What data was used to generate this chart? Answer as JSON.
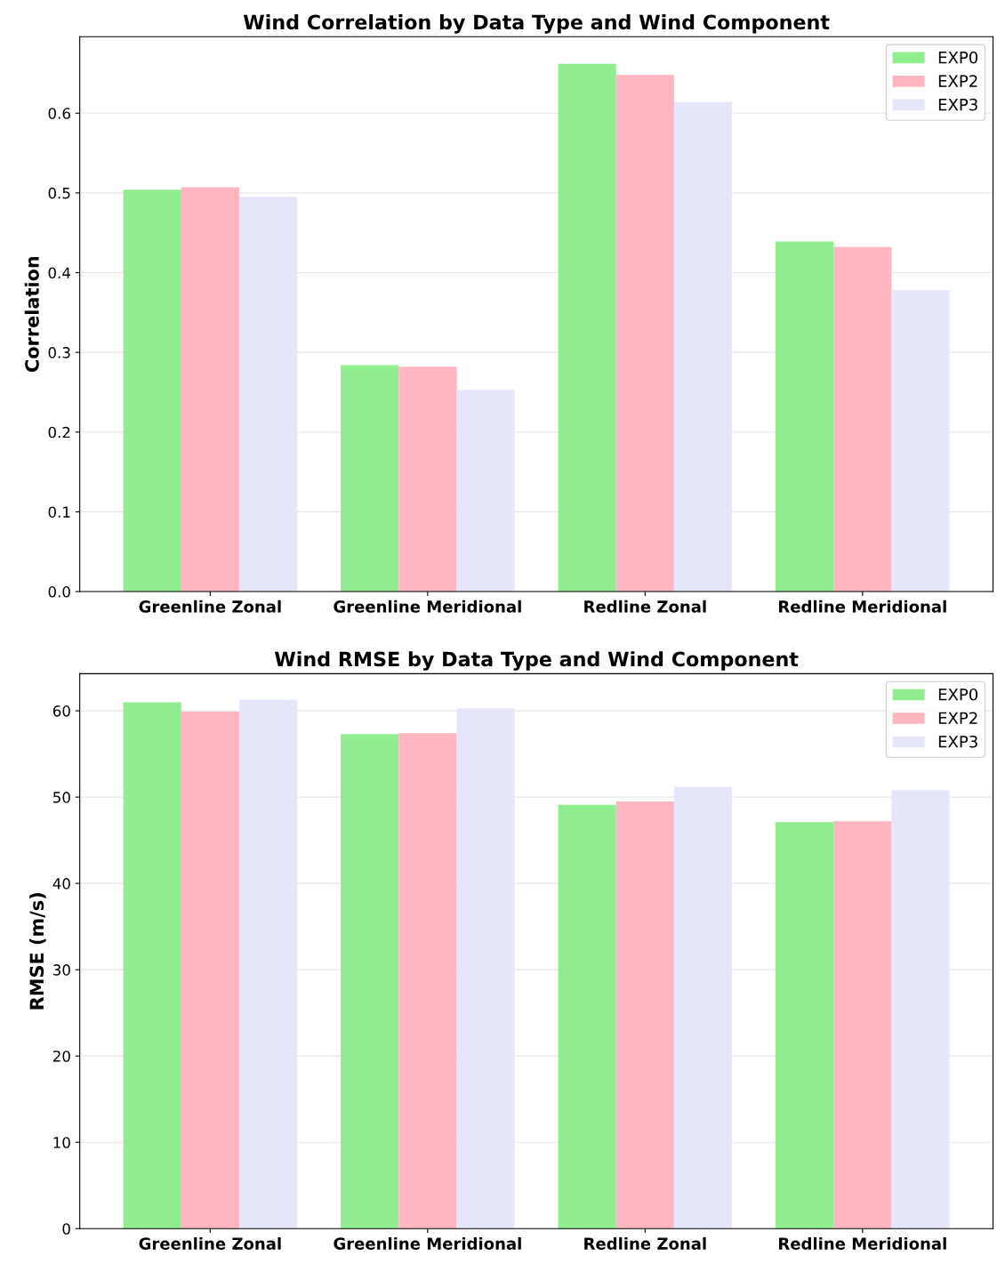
{
  "chart_data": [
    {
      "type": "bar",
      "title": "Wind Correlation by Data Type and Wind Component",
      "ylabel": "Correlation",
      "categories": [
        "Greenline Zonal",
        "Greenline Meridional",
        "Redline Zonal",
        "Redline Meridional"
      ],
      "series": [
        {
          "name": "EXP0",
          "color": "#90ee90",
          "values": [
            0.504,
            0.284,
            0.662,
            0.439
          ]
        },
        {
          "name": "EXP2",
          "color": "#ffb6c1",
          "values": [
            0.507,
            0.282,
            0.648,
            0.432
          ]
        },
        {
          "name": "EXP3",
          "color": "#e6e6fa",
          "values": [
            0.495,
            0.253,
            0.614,
            0.378
          ]
        }
      ],
      "ylim": [
        0,
        0.696
      ],
      "yticks": [
        {
          "value": 0,
          "label": "0.0"
        },
        0.1,
        0.2,
        0.3,
        0.4,
        0.5,
        0.6
      ],
      "grid": "y",
      "legend": "top right"
    },
    {
      "type": "bar",
      "title": "Wind RMSE by Data Type and Wind Component",
      "ylabel": "RMSE (m/s)",
      "categories": [
        "Greenline Zonal",
        "Greenline Meridional",
        "Redline Zonal",
        "Redline Meridional"
      ],
      "series": [
        {
          "name": "EXP0",
          "color": "#90ee90",
          "values": [
            61.0,
            57.3,
            49.1,
            47.1
          ]
        },
        {
          "name": "EXP2",
          "color": "#ffb6c1",
          "values": [
            59.9,
            57.4,
            49.5,
            47.2
          ]
        },
        {
          "name": "EXP3",
          "color": "#e6e6fa",
          "values": [
            61.3,
            60.3,
            51.2,
            50.8
          ]
        }
      ],
      "ylim": [
        0,
        64.3
      ],
      "yticks": [
        0,
        10,
        20,
        30,
        40,
        50,
        60
      ],
      "grid": "y",
      "legend": "top right"
    }
  ]
}
